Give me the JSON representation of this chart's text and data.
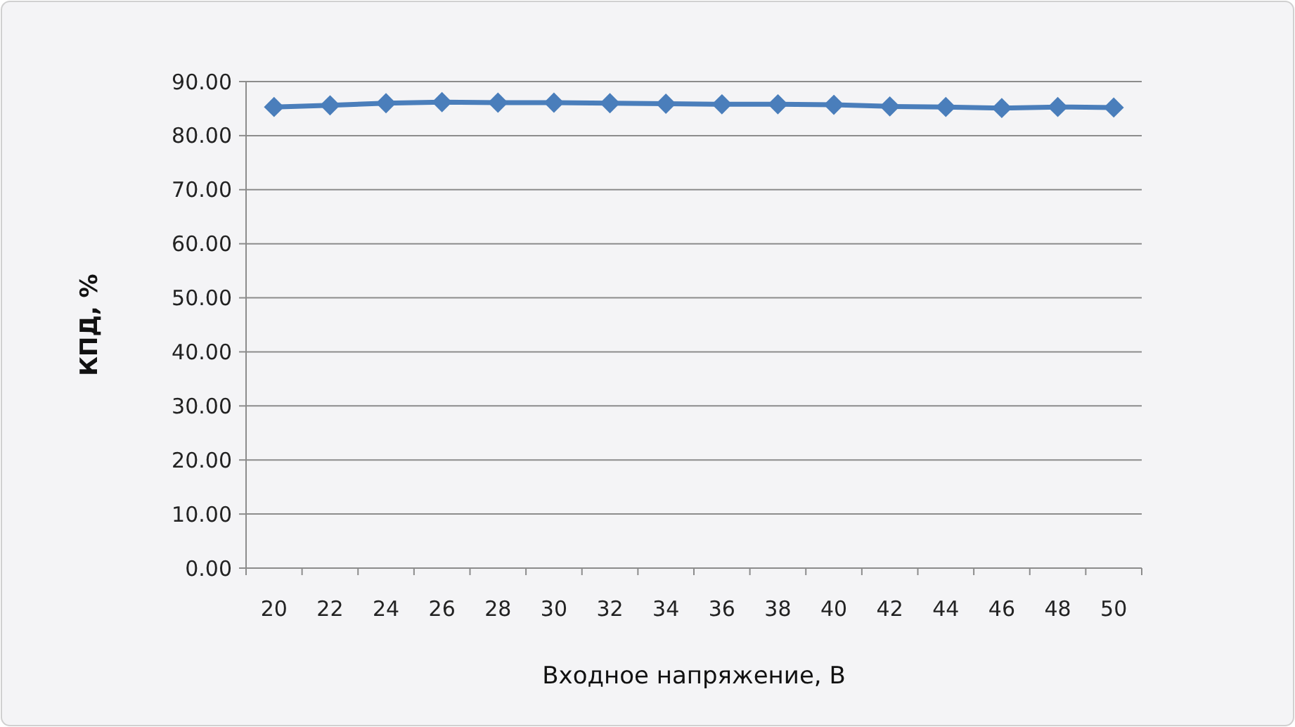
{
  "chart_data": {
    "type": "line",
    "xlabel": "Входное напряжение, В",
    "ylabel": "КПД, %",
    "categories": [
      "20",
      "22",
      "24",
      "26",
      "28",
      "30",
      "32",
      "34",
      "36",
      "38",
      "40",
      "42",
      "44",
      "46",
      "48",
      "50"
    ],
    "series": [
      {
        "color": "#4a7ebb",
        "values": [
          85.3,
          85.6,
          86.0,
          86.2,
          86.1,
          86.1,
          86.0,
          85.9,
          85.8,
          85.8,
          85.7,
          85.4,
          85.3,
          85.1,
          85.3,
          85.2
        ]
      }
    ],
    "ylim": [
      0,
      90
    ],
    "yticks": [
      {
        "value": 0,
        "label": "0.00"
      },
      {
        "value": 10,
        "label": "10.00"
      },
      {
        "value": 20,
        "label": "20.00"
      },
      {
        "value": 30,
        "label": "30.00"
      },
      {
        "value": 40,
        "label": "40.00"
      },
      {
        "value": 50,
        "label": "50.00"
      },
      {
        "value": 60,
        "label": "60.00"
      },
      {
        "value": 70,
        "label": "70.00"
      },
      {
        "value": 80,
        "label": "80.00"
      },
      {
        "value": 90,
        "label": "90.00"
      }
    ],
    "grid": "y",
    "marker": "diamond"
  }
}
